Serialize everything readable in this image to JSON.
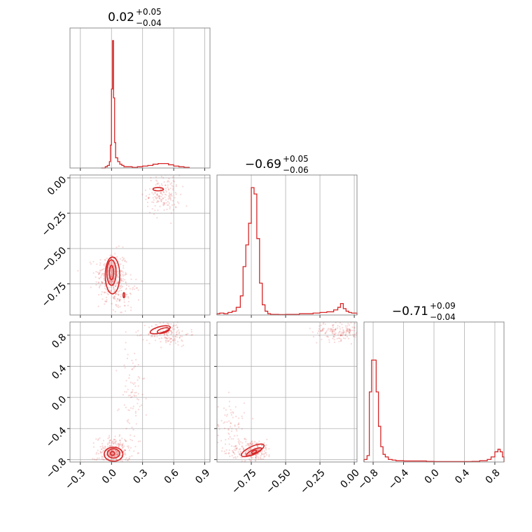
{
  "colors": {
    "series": "#d62728",
    "grid": "#b0b0b0",
    "frame": "#808080"
  },
  "chart_data": {
    "type": "corner",
    "panels": [
      {
        "id": "hist-0",
        "type": "histogram",
        "row": 0,
        "col": 0,
        "title": {
          "main": "0.02",
          "sup": "+0.05",
          "sub": "−0.04"
        },
        "xlim": [
          -0.4,
          0.95
        ],
        "xticks": [
          -0.3,
          0.0,
          0.3,
          0.6,
          0.9
        ],
        "bin_edges": [
          -0.1,
          -0.08,
          -0.06,
          -0.04,
          -0.02,
          -0.01,
          0.0,
          0.01,
          0.02,
          0.03,
          0.04,
          0.06,
          0.08,
          0.1,
          0.12,
          0.15,
          0.2,
          0.25,
          0.3,
          0.35,
          0.4,
          0.45,
          0.5,
          0.55,
          0.6,
          0.65,
          0.7,
          0.75
        ],
        "counts": [
          0,
          0,
          1,
          2,
          5,
          18,
          62,
          100,
          55,
          20,
          8,
          5,
          3,
          2,
          1,
          1,
          0.5,
          1,
          1.5,
          2,
          3,
          3.5,
          3.5,
          2.5,
          1.5,
          1,
          0.5
        ],
        "ymax": 100
      },
      {
        "id": "hist-1",
        "type": "histogram",
        "row": 1,
        "col": 1,
        "title": {
          "main": "−0.69",
          "sup": "+0.05",
          "sub": "−0.06"
        },
        "xlim": [
          -1.0,
          0.02
        ],
        "xticks": [
          -0.75,
          -0.5,
          -0.25,
          0.0
        ],
        "bin_edges": [
          -1.0,
          -0.98,
          -0.95,
          -0.92,
          -0.89,
          -0.86,
          -0.83,
          -0.81,
          -0.79,
          -0.77,
          -0.75,
          -0.73,
          -0.71,
          -0.69,
          -0.67,
          -0.65,
          -0.63,
          -0.61,
          -0.58,
          -0.55,
          -0.5,
          -0.45,
          -0.4,
          -0.35,
          -0.3,
          -0.25,
          -0.2,
          -0.15,
          -0.12,
          -0.1,
          -0.08,
          -0.06,
          -0.04,
          -0.02,
          0.0,
          0.02
        ],
        "counts": [
          1,
          1.5,
          1,
          2,
          3,
          6,
          15,
          38,
          55,
          72,
          100,
          95,
          60,
          25,
          8,
          3,
          1,
          0.5,
          0.5,
          0.3,
          0.5,
          0.5,
          1,
          1,
          1.5,
          2,
          2.5,
          4,
          6,
          9,
          5,
          3,
          2,
          1.5,
          1.5
        ],
        "ymax": 100
      },
      {
        "id": "hist-2",
        "type": "histogram",
        "row": 2,
        "col": 2,
        "title": {
          "main": "−0.71",
          "sup": "+0.09",
          "sub": "−0.04"
        },
        "xlim": [
          -0.92,
          0.92
        ],
        "xticks": [
          -0.8,
          -0.4,
          0.0,
          0.4,
          0.8
        ],
        "bin_edges": [
          -0.92,
          -0.88,
          -0.85,
          -0.82,
          -0.79,
          -0.76,
          -0.73,
          -0.7,
          -0.67,
          -0.64,
          -0.6,
          -0.55,
          -0.5,
          -0.45,
          -0.4,
          -0.3,
          -0.2,
          -0.1,
          0.0,
          0.1,
          0.2,
          0.3,
          0.4,
          0.5,
          0.6,
          0.7,
          0.75,
          0.8,
          0.84,
          0.87,
          0.9,
          0.92
        ],
        "counts": [
          2,
          5,
          55,
          80,
          80,
          55,
          28,
          12,
          6,
          4,
          2,
          1.5,
          1,
          1,
          0.8,
          0.8,
          0.8,
          0.5,
          0.3,
          0.3,
          0.3,
          0.3,
          0.3,
          0.5,
          1,
          2,
          4,
          8,
          10,
          8,
          4
        ],
        "ymax": 100
      },
      {
        "id": "contour-1-0",
        "type": "contour",
        "row": 1,
        "col": 0,
        "xlim": [
          -0.4,
          0.95
        ],
        "ylim": [
          -0.97,
          0.02
        ],
        "xticks": [
          -0.3,
          0.0,
          0.3,
          0.6,
          0.9
        ],
        "yticks": [
          0.0,
          -0.25,
          -0.5,
          -0.75
        ],
        "ytick_labels": [
          "0.00",
          "−0.25",
          "−0.50",
          "−0.75"
        ],
        "blobs": [
          {
            "cx": 0.0,
            "cy": -0.67,
            "rx": 0.02,
            "ry": 0.05,
            "angle": 0
          },
          {
            "cx": 0.0,
            "cy": -0.67,
            "rx": 0.045,
            "ry": 0.09,
            "angle": 0
          },
          {
            "cx": 0.01,
            "cy": -0.69,
            "rx": 0.07,
            "ry": 0.13,
            "angle": 0
          },
          {
            "cx": 0.45,
            "cy": -0.08,
            "rx": 0.05,
            "ry": 0.012,
            "angle": 0
          },
          {
            "cx": 0.12,
            "cy": -0.83,
            "rx": 0.008,
            "ry": 0.018,
            "angle": 0
          }
        ],
        "fill_blob": 1,
        "scatter_clusters": [
          {
            "cx": 0.0,
            "cy": -0.7,
            "sx": 0.08,
            "sy": 0.09,
            "n": 260
          },
          {
            "cx": 0.5,
            "cy": -0.12,
            "sx": 0.08,
            "sy": 0.07,
            "n": 160
          },
          {
            "cx": 0.12,
            "cy": -0.85,
            "sx": 0.08,
            "sy": 0.06,
            "n": 80
          }
        ]
      },
      {
        "id": "contour-2-0",
        "type": "contour",
        "row": 2,
        "col": 0,
        "xlim": [
          -0.4,
          0.95
        ],
        "ylim": [
          -0.83,
          0.97
        ],
        "xticks": [
          -0.3,
          0.0,
          0.3,
          0.6,
          0.9
        ],
        "yticks": [
          0.8,
          0.4,
          0.0,
          -0.4,
          -0.8
        ],
        "xtick_labels": [
          "−0.3",
          "0.0",
          "0.3",
          "0.6",
          "0.9"
        ],
        "ytick_labels": [
          "0.8",
          "0.4",
          "0.0",
          "−0.4",
          "−0.8"
        ],
        "blobs": [
          {
            "cx": 0.01,
            "cy": -0.72,
            "rx": 0.02,
            "ry": 0.025,
            "angle": 0
          },
          {
            "cx": 0.02,
            "cy": -0.72,
            "rx": 0.06,
            "ry": 0.06,
            "angle": 0
          },
          {
            "cx": 0.02,
            "cy": -0.73,
            "rx": 0.09,
            "ry": 0.09,
            "angle": 0
          },
          {
            "cx": 0.5,
            "cy": 0.86,
            "rx": 0.06,
            "ry": 0.03,
            "angle": 15
          },
          {
            "cx": 0.47,
            "cy": 0.87,
            "rx": 0.1,
            "ry": 0.04,
            "angle": 15
          }
        ],
        "fill_blob": 1,
        "scatter_clusters": [
          {
            "cx": 0.02,
            "cy": -0.7,
            "sx": 0.08,
            "sy": 0.1,
            "n": 260
          },
          {
            "cx": 0.2,
            "cy": 0.0,
            "sx": 0.06,
            "sy": 0.35,
            "n": 90
          },
          {
            "cx": 0.55,
            "cy": 0.82,
            "sx": 0.1,
            "sy": 0.08,
            "n": 140
          }
        ]
      },
      {
        "id": "contour-2-1",
        "type": "contour",
        "row": 2,
        "col": 1,
        "xlim": [
          -1.0,
          0.02
        ],
        "ylim": [
          -0.83,
          0.97
        ],
        "xticks": [
          -0.75,
          -0.5,
          -0.25,
          0.0
        ],
        "yticks": [
          0.8,
          0.4,
          0.0,
          -0.4,
          -0.8
        ],
        "xtick_labels": [
          "−0.75",
          "−0.50",
          "−0.25",
          "0.00"
        ],
        "blobs": [
          {
            "cx": -0.73,
            "cy": -0.7,
            "rx": 0.02,
            "ry": 0.015,
            "angle": 25
          },
          {
            "cx": -0.73,
            "cy": -0.7,
            "rx": 0.06,
            "ry": 0.03,
            "angle": 25
          },
          {
            "cx": -0.74,
            "cy": -0.68,
            "rx": 0.09,
            "ry": 0.05,
            "angle": 25
          }
        ],
        "fill_blob": 1,
        "scatter_clusters": [
          {
            "cx": -0.75,
            "cy": -0.68,
            "sx": 0.08,
            "sy": 0.07,
            "n": 220
          },
          {
            "cx": -0.9,
            "cy": -0.35,
            "sx": 0.05,
            "sy": 0.18,
            "n": 70
          },
          {
            "cx": -0.1,
            "cy": 0.85,
            "sx": 0.1,
            "sy": 0.06,
            "n": 170
          }
        ]
      }
    ]
  }
}
